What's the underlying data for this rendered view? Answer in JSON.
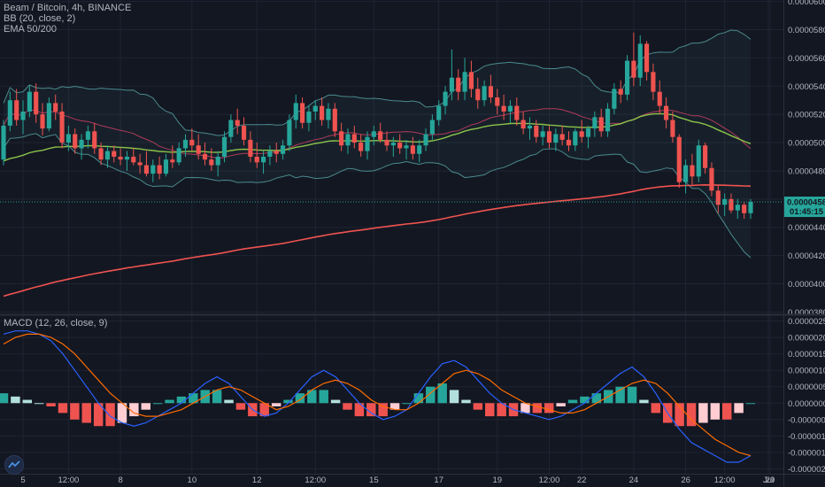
{
  "legend": {
    "symbol": "Beam / Bitcoin, 4h, BINANCE",
    "bb": "BB (20, close, 2)",
    "ema": "EMA 50/200",
    "macd": "MACD (12, 26, close, 9)"
  },
  "price_tag": {
    "value": "0.0000458",
    "countdown": "01:45:15",
    "color": "#26a69a"
  },
  "colors": {
    "background": "#131722",
    "grid": "#1f2433",
    "up": "#26a69a",
    "down": "#ef5350",
    "bb_band": "#4a8a8e",
    "bb_basis": "#b03a5b",
    "ema50": "#8bc34a",
    "ema200": "#ef5350",
    "macd_line": "#2962ff",
    "signal_line": "#ff6d00",
    "hist_pos_strong": "#26a69a",
    "hist_pos_weak": "#b2dfdb",
    "hist_neg_strong": "#ef5350",
    "hist_neg_weak": "#ffcdd2"
  },
  "chart_data": [
    {
      "type": "candlestick",
      "name": "Beam / Bitcoin, 4h, BINANCE",
      "y_axis_ticks": [
        "0.0000600",
        "0.0000580",
        "0.0000560",
        "0.0000540",
        "0.0000520",
        "0.0000500",
        "0.0000480",
        "0.0000460",
        "0.0000440",
        "0.0000420",
        "0.0000400",
        "0.0000380"
      ],
      "ylim": [
        3.79e-05,
        6.01e-05
      ],
      "x_axis_ticks": [
        "5",
        "12:00",
        "8",
        "10",
        "12",
        "12:00",
        "15",
        "17",
        "19",
        "12:00",
        "22",
        "24",
        "26",
        "12:00",
        "29",
        "Jul"
      ],
      "last_price": 4.58e-05,
      "candles": [
        [
          4.88e-05,
          5.16e-05,
          4.84e-05,
          5.12e-05
        ],
        [
          5.12e-05,
          5.36e-05,
          5.08e-05,
          5.3e-05
        ],
        [
          5.3e-05,
          5.38e-05,
          5.12e-05,
          5.16e-05
        ],
        [
          5.16e-05,
          5.3e-05,
          5.06e-05,
          5.22e-05
        ],
        [
          5.22e-05,
          5.4e-05,
          5.18e-05,
          5.36e-05
        ],
        [
          5.36e-05,
          5.42e-05,
          5.14e-05,
          5.2e-05
        ],
        [
          5.2e-05,
          5.28e-05,
          5.05e-05,
          5.1e-05
        ],
        [
          5.1e-05,
          5.32e-05,
          5.08e-05,
          5.28e-05
        ],
        [
          5.28e-05,
          5.34e-05,
          5.16e-05,
          5.22e-05
        ],
        [
          5.22e-05,
          5.28e-05,
          4.96e-05,
          5e-05
        ],
        [
          5e-05,
          5.12e-05,
          4.94e-05,
          5.06e-05
        ],
        [
          5.06e-05,
          5.1e-05,
          4.92e-05,
          4.96e-05
        ],
        [
          4.96e-05,
          5.06e-05,
          4.88e-05,
          5.02e-05
        ],
        [
          5.02e-05,
          5.12e-05,
          4.96e-05,
          5.08e-05
        ],
        [
          5.08e-05,
          5.14e-05,
          4.92e-05,
          4.96e-05
        ],
        [
          4.96e-05,
          5e-05,
          4.84e-05,
          4.88e-05
        ],
        [
          4.88e-05,
          4.98e-05,
          4.82e-05,
          4.94e-05
        ],
        [
          4.94e-05,
          4.98e-05,
          4.86e-05,
          4.9e-05
        ],
        [
          4.9e-05,
          4.96e-05,
          4.84e-05,
          4.88e-05
        ],
        [
          4.88e-05,
          4.94e-05,
          4.8e-05,
          4.9e-05
        ],
        [
          4.9e-05,
          4.96e-05,
          4.84e-05,
          4.86e-05
        ],
        [
          4.86e-05,
          4.92e-05,
          4.78e-05,
          4.84e-05
        ],
        [
          4.84e-05,
          4.94e-05,
          4.76e-05,
          4.78e-05
        ],
        [
          4.78e-05,
          4.88e-05,
          4.72e-05,
          4.84e-05
        ],
        [
          4.84e-05,
          4.9e-05,
          4.74e-05,
          4.78e-05
        ],
        [
          4.78e-05,
          4.92e-05,
          4.76e-05,
          4.88e-05
        ],
        [
          4.88e-05,
          4.98e-05,
          4.82e-05,
          4.86e-05
        ],
        [
          4.86e-05,
          5e-05,
          4.84e-05,
          4.96e-05
        ],
        [
          4.96e-05,
          5.06e-05,
          4.9e-05,
          5.02e-05
        ],
        [
          5.02e-05,
          5.1e-05,
          4.94e-05,
          4.98e-05
        ],
        [
          4.98e-05,
          5.06e-05,
          4.88e-05,
          4.92e-05
        ],
        [
          4.92e-05,
          5e-05,
          4.84e-05,
          4.88e-05
        ],
        [
          4.88e-05,
          4.96e-05,
          4.8e-05,
          4.84e-05
        ],
        [
          4.84e-05,
          4.94e-05,
          4.76e-05,
          4.9e-05
        ],
        [
          4.9e-05,
          5.08e-05,
          4.86e-05,
          5.04e-05
        ],
        [
          5.04e-05,
          5.2e-05,
          5e-05,
          5.16e-05
        ],
        [
          5.16e-05,
          5.24e-05,
          5.06e-05,
          5.12e-05
        ],
        [
          5.12e-05,
          5.18e-05,
          4.98e-05,
          5.02e-05
        ],
        [
          5.02e-05,
          5.08e-05,
          4.86e-05,
          4.9e-05
        ],
        [
          4.9e-05,
          5e-05,
          4.82e-05,
          4.86e-05
        ],
        [
          4.86e-05,
          4.94e-05,
          4.78e-05,
          4.9e-05
        ],
        [
          4.9e-05,
          4.98e-05,
          4.84e-05,
          4.94e-05
        ],
        [
          4.94e-05,
          5e-05,
          4.86e-05,
          4.92e-05
        ],
        [
          4.92e-05,
          5.02e-05,
          4.88e-05,
          4.98e-05
        ],
        [
          4.98e-05,
          5.2e-05,
          4.94e-05,
          5.16e-05
        ],
        [
          5.16e-05,
          5.34e-05,
          5.1e-05,
          5.28e-05
        ],
        [
          5.28e-05,
          5.32e-05,
          5.1e-05,
          5.14e-05
        ],
        [
          5.14e-05,
          5.26e-05,
          5.08e-05,
          5.22e-05
        ],
        [
          5.22e-05,
          5.3e-05,
          5.16e-05,
          5.26e-05
        ],
        [
          5.26e-05,
          5.32e-05,
          5.12e-05,
          5.16e-05
        ],
        [
          5.16e-05,
          5.28e-05,
          5.1e-05,
          5.24e-05
        ],
        [
          5.24e-05,
          5.28e-05,
          5.04e-05,
          5.08e-05
        ],
        [
          5.08e-05,
          5.14e-05,
          4.94e-05,
          4.98e-05
        ],
        [
          4.98e-05,
          5.1e-05,
          4.92e-05,
          5.06e-05
        ],
        [
          5.06e-05,
          5.12e-05,
          4.96e-05,
          5e-05
        ],
        [
          5e-05,
          5.06e-05,
          4.9e-05,
          4.94e-05
        ],
        [
          4.94e-05,
          5.08e-05,
          4.88e-05,
          5.04e-05
        ],
        [
          5.04e-05,
          5.12e-05,
          4.98e-05,
          5.08e-05
        ],
        [
          5.08e-05,
          5.14e-05,
          5e-05,
          5.02e-05
        ],
        [
          5.02e-05,
          5.08e-05,
          4.94e-05,
          4.98e-05
        ],
        [
          4.98e-05,
          5.04e-05,
          4.9e-05,
          5e-05
        ],
        [
          5e-05,
          5.06e-05,
          4.92e-05,
          4.96e-05
        ],
        [
          4.96e-05,
          5.02e-05,
          4.88e-05,
          4.98e-05
        ],
        [
          4.98e-05,
          5.04e-05,
          4.88e-05,
          4.92e-05
        ],
        [
          4.92e-05,
          5.02e-05,
          4.86e-05,
          4.98e-05
        ],
        [
          4.98e-05,
          5.1e-05,
          4.94e-05,
          5.06e-05
        ],
        [
          5.06e-05,
          5.2e-05,
          5.02e-05,
          5.16e-05
        ],
        [
          5.16e-05,
          5.3e-05,
          5.12e-05,
          5.26e-05
        ],
        [
          5.26e-05,
          5.4e-05,
          5.2e-05,
          5.36e-05
        ],
        [
          5.36e-05,
          5.66e-05,
          5.3e-05,
          5.46e-05
        ],
        [
          5.46e-05,
          5.52e-05,
          5.3e-05,
          5.36e-05
        ],
        [
          5.36e-05,
          5.6e-05,
          5.3e-05,
          5.5e-05
        ],
        [
          5.5e-05,
          5.58e-05,
          5.32e-05,
          5.38e-05
        ],
        [
          5.38e-05,
          5.46e-05,
          5.24e-05,
          5.3e-05
        ],
        [
          5.3e-05,
          5.44e-05,
          5.26e-05,
          5.4e-05
        ],
        [
          5.4e-05,
          5.48e-05,
          5.28e-05,
          5.32e-05
        ],
        [
          5.32e-05,
          5.38e-05,
          5.2e-05,
          5.26e-05
        ],
        [
          5.26e-05,
          5.34e-05,
          5.16e-05,
          5.22e-05
        ],
        [
          5.22e-05,
          5.3e-05,
          5.14e-05,
          5.26e-05
        ],
        [
          5.26e-05,
          5.32e-05,
          5.12e-05,
          5.16e-05
        ],
        [
          5.16e-05,
          5.22e-05,
          5.06e-05,
          5.1e-05
        ],
        [
          5.1e-05,
          5.18e-05,
          5.02e-05,
          5.12e-05
        ],
        [
          5.12e-05,
          5.16e-05,
          5e-05,
          5.04e-05
        ],
        [
          5.04e-05,
          5.12e-05,
          4.98e-05,
          5.08e-05
        ],
        [
          5.08e-05,
          5.12e-05,
          4.96e-05,
          5e-05
        ],
        [
          5e-05,
          5.1e-05,
          4.94e-05,
          5.06e-05
        ],
        [
          5.06e-05,
          5.12e-05,
          4.98e-05,
          5.02e-05
        ],
        [
          5.02e-05,
          5.08e-05,
          4.94e-05,
          4.98e-05
        ],
        [
          4.98e-05,
          5.1e-05,
          4.94e-05,
          5.08e-05
        ],
        [
          5.08e-05,
          5.16e-05,
          5e-05,
          5.04e-05
        ],
        [
          5.04e-05,
          5.12e-05,
          4.96e-05,
          5.1e-05
        ],
        [
          5.1e-05,
          5.22e-05,
          5.04e-05,
          5.18e-05
        ],
        [
          5.18e-05,
          5.24e-05,
          5.04e-05,
          5.08e-05
        ],
        [
          5.08e-05,
          5.28e-05,
          5.04e-05,
          5.24e-05
        ],
        [
          5.24e-05,
          5.42e-05,
          5.2e-05,
          5.38e-05
        ],
        [
          5.38e-05,
          5.44e-05,
          5.28e-05,
          5.34e-05
        ],
        [
          5.34e-05,
          5.62e-05,
          5.3e-05,
          5.58e-05
        ],
        [
          5.58e-05,
          5.78e-05,
          5.4e-05,
          5.46e-05
        ],
        [
          5.46e-05,
          5.76e-05,
          5.4e-05,
          5.7e-05
        ],
        [
          5.7e-05,
          5.72e-05,
          5.44e-05,
          5.5e-05
        ],
        [
          5.5e-05,
          5.56e-05,
          5.3e-05,
          5.36e-05
        ],
        [
          5.36e-05,
          5.44e-05,
          5.2e-05,
          5.26e-05
        ],
        [
          5.26e-05,
          5.32e-05,
          5.1e-05,
          5.16e-05
        ],
        [
          5.16e-05,
          5.22e-05,
          5e-05,
          5.04e-05
        ],
        [
          5.04e-05,
          5.06e-05,
          4.68e-05,
          4.72e-05
        ],
        [
          4.72e-05,
          4.88e-05,
          4.64e-05,
          4.84e-05
        ],
        [
          4.84e-05,
          4.92e-05,
          4.7e-05,
          4.76e-05
        ],
        [
          4.76e-05,
          5.02e-05,
          4.72e-05,
          4.98e-05
        ],
        [
          4.98e-05,
          5e-05,
          4.78e-05,
          4.82e-05
        ],
        [
          4.82e-05,
          4.86e-05,
          4.62e-05,
          4.66e-05
        ],
        [
          4.66e-05,
          4.7e-05,
          4.5e-05,
          4.56e-05
        ],
        [
          4.56e-05,
          4.64e-05,
          4.48e-05,
          4.6e-05
        ],
        [
          4.6e-05,
          4.64e-05,
          4.5e-05,
          4.52e-05
        ],
        [
          4.52e-05,
          4.6e-05,
          4.46e-05,
          4.56e-05
        ],
        [
          4.56e-05,
          4.58e-05,
          4.46e-05,
          4.5e-05
        ],
        [
          4.5e-05,
          4.6e-05,
          4.46e-05,
          4.58e-05
        ]
      ]
    },
    {
      "type": "histogram+line",
      "name": "MACD (12, 26, close, 9)",
      "y_axis_ticks": [
        "0.0000025",
        "0.0000020",
        "0.0000015",
        "0.0000010",
        "0.0000005",
        "0.0000000",
        "-0.0000005",
        "-0.0000010",
        "-0.0000015",
        "-0.0000020"
      ],
      "ylim": [
        -2.15e-06,
        2.65e-06
      ],
      "macd": [
        2.1e-06,
        2.2e-06,
        2.2e-06,
        2.1e-06,
        1.9e-06,
        1.5e-06,
        1e-06,
        5e-07,
        0.0,
        -4e-07,
        -6e-07,
        -7e-07,
        -6e-07,
        -4e-07,
        -2e-07,
        0.0,
        3e-07,
        6e-07,
        8e-07,
        6e-07,
        2e-07,
        -2e-07,
        -4e-07,
        -3e-07,
        0.0,
        4e-07,
        8e-07,
        1e-06,
        8e-07,
        4e-07,
        0.0,
        -3e-07,
        -5e-07,
        -4e-07,
        -2e-07,
        3e-07,
        8e-07,
        1.2e-06,
        1.3e-06,
        1.1e-06,
        7e-07,
        3e-07,
        0.0,
        -2e-07,
        -3e-07,
        -4e-07,
        -5e-07,
        -4e-07,
        -2e-07,
        0.0,
        3e-07,
        6e-07,
        9e-07,
        1.1e-06,
        8e-07,
        3e-07,
        -3e-07,
        -8e-07,
        -1.2e-06,
        -1.4e-06,
        -1.6e-06,
        -1.8e-06,
        -1.8e-06,
        -1.6e-06
      ],
      "signal": [
        1.8e-06,
        2e-06,
        2.1e-06,
        2.1e-06,
        2e-06,
        1.8e-06,
        1.5e-06,
        1.1e-06,
        7e-07,
        3e-07,
        0.0,
        -3e-07,
        -4e-07,
        -4e-07,
        -3e-07,
        -2e-07,
        0.0,
        2e-07,
        4e-07,
        5e-07,
        4e-07,
        2e-07,
        0.0,
        -2e-07,
        -1e-07,
        1e-07,
        4e-07,
        6e-07,
        7e-07,
        6e-07,
        4e-07,
        1e-07,
        -1e-07,
        -2e-07,
        -2e-07,
        0.0,
        3e-07,
        6e-07,
        9e-07,
        1e-06,
        9e-07,
        7e-07,
        4e-07,
        2e-07,
        0.0,
        -1e-07,
        -2e-07,
        -3e-07,
        -3e-07,
        -2e-07,
        0.0,
        2e-07,
        4e-07,
        6e-07,
        7e-07,
        6e-07,
        3e-07,
        -1e-07,
        -5e-07,
        -8e-07,
        -1.1e-06,
        -1.3e-06,
        -1.5e-06,
        -1.6e-06
      ]
    }
  ]
}
